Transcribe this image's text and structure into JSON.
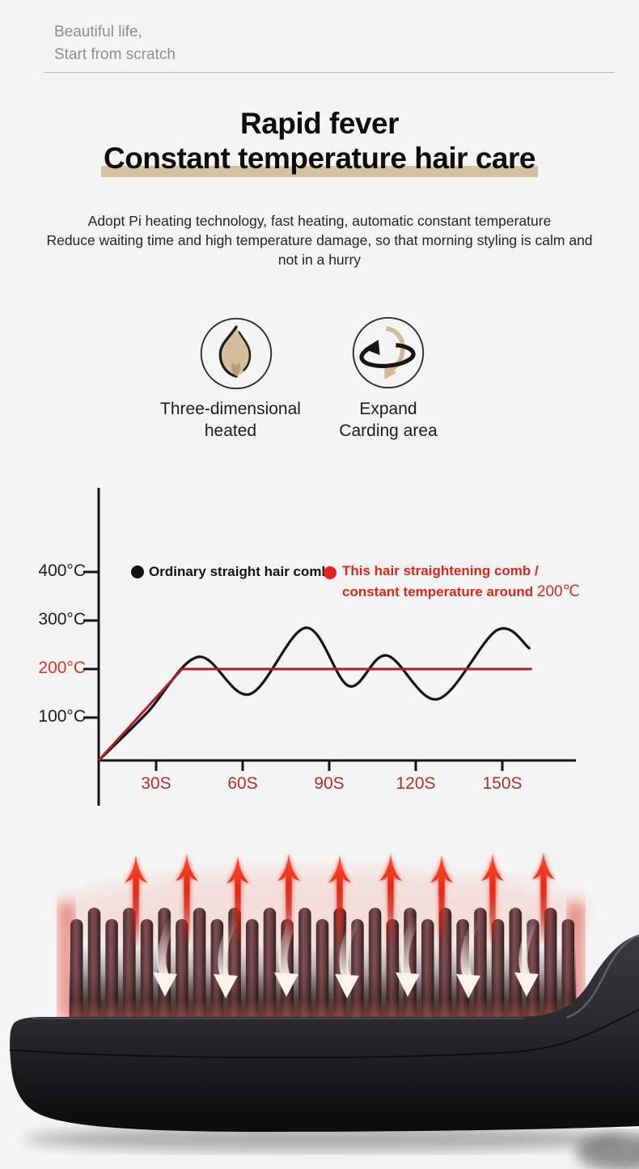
{
  "page": {
    "background": "#f5f4f5"
  },
  "header": {
    "tagline_line1": "Beautiful life,",
    "tagline_line2": "Start from scratch"
  },
  "hero": {
    "title_line1": "Rapid fever",
    "title_line2": "Constant temperature hair care",
    "highlight_color": "#d5c2a4",
    "intro_line1": "Adopt Pi heating technology, fast heating, automatic constant temperature",
    "intro_line2": "Reduce waiting time and high temperature damage, so that morning styling is calm and",
    "intro_line3": "not in a hurry"
  },
  "features": [
    {
      "icon": "flame-icon",
      "label_line1": "Three-dimensional",
      "label_line2": "heated"
    },
    {
      "icon": "rotate-arrows-icon",
      "label_line1": "Expand",
      "label_line2": "Carding area"
    }
  ],
  "chart_data": {
    "type": "line",
    "title": "",
    "xlabel": "",
    "ylabel": "",
    "x_unit": "seconds",
    "y_unit": "°C",
    "x_tick_labels": [
      "30S",
      "60S",
      "90S",
      "120S",
      "150S"
    ],
    "x_tick_values": [
      30,
      60,
      90,
      120,
      150
    ],
    "y_tick_labels": [
      "400°C",
      "300°C",
      "200°C",
      "100°C"
    ],
    "y_tick_values": [
      400,
      300,
      200,
      100
    ],
    "highlighted_y_tick": {
      "label": "200°C",
      "color": "#e2301f"
    },
    "x_tick_color": "#b03028",
    "axis_color": "#141414",
    "xlim": [
      0,
      175
    ],
    "ylim": [
      0,
      560
    ],
    "grid": false,
    "legend_position": "top",
    "series": [
      {
        "name": "Ordinary straight hair comb",
        "color": "#141414",
        "smooth": true,
        "x": [
          0,
          18,
          37,
          56,
          77,
          93,
          107,
          126,
          148,
          160
        ],
        "y": [
          0,
          110,
          225,
          148,
          285,
          165,
          228,
          138,
          280,
          243
        ]
      },
      {
        "name": "This hair straightening comb / constant temperature around 200℃",
        "color": "#a92128",
        "smooth": false,
        "x": [
          0,
          31,
          161
        ],
        "y": [
          0,
          200,
          200
        ]
      }
    ],
    "legend": [
      {
        "marker_color": "#111111",
        "line1": "Ordinary straight hair comb",
        "line2_bold": "",
        "line2_regular": ""
      },
      {
        "marker_color": "#e2241a",
        "line1": "This hair straightening comb /",
        "line2_bold": "constant temperature around ",
        "line2_regular": "200℃"
      }
    ]
  },
  "product": {
    "bristle_color": "#6f4347",
    "body_color": "#2b2a2e",
    "heat_arrow_color": "#e63320",
    "airflow_arrow_color": "#fbf2ea"
  }
}
